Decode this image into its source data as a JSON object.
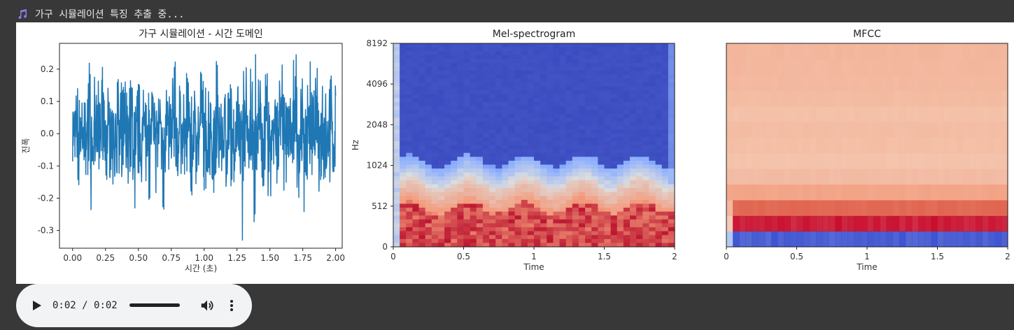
{
  "header": {
    "status_text": "가구 시뮬레이션 특징 추출 중...",
    "icon": "music-note-icon",
    "icon_color": "#8c7ae6"
  },
  "chart_data": [
    {
      "type": "line",
      "title": "가구 시뮬레이션 - 시간 도메인",
      "xlabel": "시간 (초)",
      "ylabel": "진폭",
      "xlim": [
        -0.1,
        2.05
      ],
      "ylim": [
        -0.355,
        0.28
      ],
      "xticks": [
        "0.00",
        "0.25",
        "0.50",
        "0.75",
        "1.00",
        "1.25",
        "1.50",
        "1.75",
        "2.00"
      ],
      "xtick_values": [
        0,
        0.25,
        0.5,
        0.75,
        1.0,
        1.25,
        1.5,
        1.75,
        2.0
      ],
      "yticks": [
        "0.2",
        "0.1",
        "0.0",
        "-0.1",
        "-0.2",
        "-0.3"
      ],
      "ytick_values": [
        0.2,
        0.1,
        0.0,
        -0.1,
        -0.2,
        -0.3
      ],
      "series_color": "#1f77b4",
      "extrema": {
        "max": 0.245,
        "min": -0.33
      },
      "approx_samples": [
        0.04,
        -0.19,
        0.08,
        -0.12,
        0.21,
        -0.21,
        0.12,
        -0.09,
        0.19,
        -0.14,
        0.22,
        -0.1,
        0.11,
        -0.17,
        0.13,
        -0.06,
        0.16,
        -0.22,
        0.09,
        -0.11,
        0.2,
        -0.16,
        0.07,
        -0.13,
        0.18,
        -0.24,
        0.12,
        -0.08,
        0.21,
        -0.15,
        0.1,
        -0.12,
        0.22,
        -0.18,
        0.14,
        -0.09,
        0.23,
        -0.12,
        0.1,
        -0.16,
        0.2,
        -0.14,
        0.08,
        -0.1,
        0.17,
        -0.19,
        0.12,
        -0.07,
        0.19,
        -0.13,
        0.22,
        -0.33,
        0.11,
        -0.1,
        0.18,
        -0.15,
        0.14,
        -0.09,
        0.23,
        -0.18,
        0.12,
        -0.11,
        0.24,
        -0.16,
        0.1,
        -0.23,
        0.2,
        -0.13,
        0.16,
        -0.12,
        0.2,
        -0.1,
        0.13,
        -0.12,
        0.02
      ]
    },
    {
      "type": "heatmap",
      "title": "Mel-spectrogram",
      "xlabel": "Time",
      "ylabel": "Hz",
      "xticks": [
        "0",
        "0.5",
        "1",
        "1.5",
        "2"
      ],
      "xtick_values": [
        0,
        0.5,
        1,
        1.5,
        2
      ],
      "yticks": [
        "0",
        "512",
        "1024",
        "2048",
        "4096",
        "8192"
      ],
      "colormap": "coolwarm"
    },
    {
      "type": "heatmap",
      "title": "MFCC",
      "xlabel": "Time",
      "xticks": [
        "0",
        "0.5",
        "1",
        "1.5",
        "2"
      ],
      "xtick_values": [
        0,
        0.5,
        1,
        1.5,
        2
      ],
      "colormap": "coolwarm",
      "row_colors_bottom_to_top": [
        "#3f54d0",
        "#c8102e",
        "#e06650",
        "#f2a385",
        "#f3b9a1",
        "#f4c1a9",
        "#f4bda3",
        "#f3bba1",
        "#f4bfa6",
        "#f3baa0",
        "#f3b79d",
        "#f3b69c",
        "#f2b59b"
      ]
    }
  ],
  "audio": {
    "current_time": "0:02",
    "separator": " / ",
    "duration": "0:02",
    "progress": 1.0
  }
}
